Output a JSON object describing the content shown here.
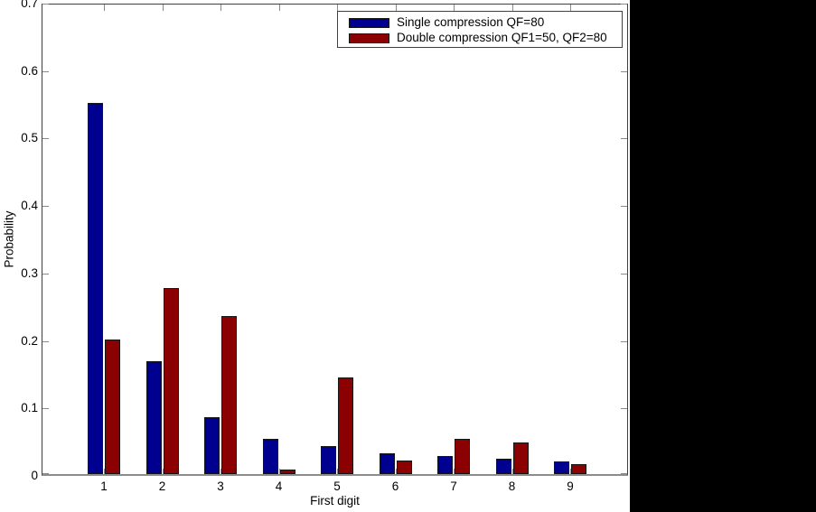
{
  "chart_data": {
    "type": "bar",
    "title": "",
    "xlabel": "First digit",
    "ylabel": "Probability",
    "categories": [
      "1",
      "2",
      "3",
      "4",
      "5",
      "6",
      "7",
      "8",
      "9"
    ],
    "series": [
      {
        "name": "Single compression QF=80",
        "color": "#000090",
        "values": [
          0.55,
          0.167,
          0.084,
          0.052,
          0.042,
          0.031,
          0.027,
          0.023,
          0.019
        ]
      },
      {
        "name": "Double compression QF1=50, QF2=80",
        "color": "#8b0000",
        "values": [
          0.199,
          0.276,
          0.234,
          0.007,
          0.143,
          0.02,
          0.052,
          0.047,
          0.015
        ]
      }
    ],
    "ylim": [
      0,
      0.7
    ],
    "yticks": [
      "0",
      "0.1",
      "0.2",
      "0.3",
      "0.4",
      "0.5",
      "0.6",
      "0.7"
    ],
    "grid": false,
    "legend_position": "top-right"
  },
  "colors": {
    "figure_background": "#ffffff",
    "outside_background": "#000000",
    "axis_border": "#3f3f3f",
    "tick": "#8a8a8a",
    "bar_edge": "#151515"
  }
}
